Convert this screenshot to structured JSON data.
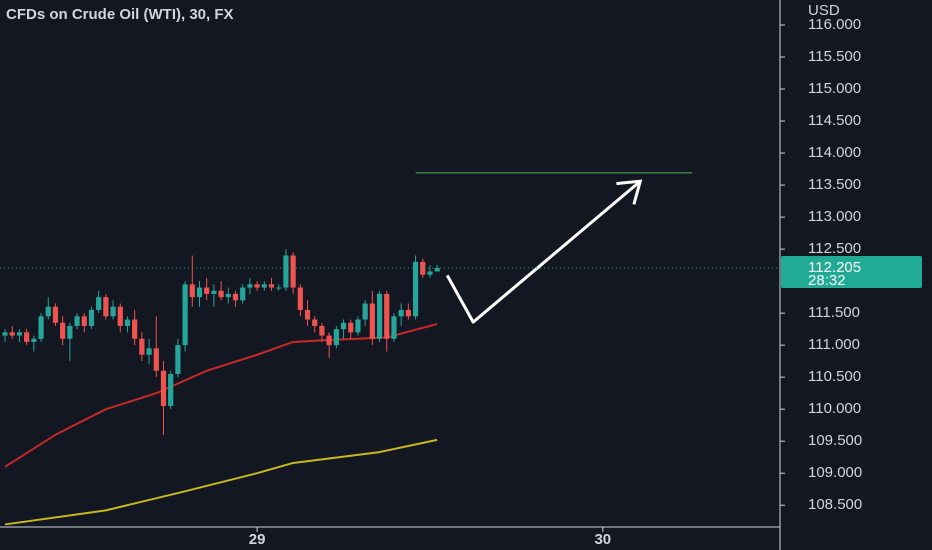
{
  "chart_data": {
    "type": "candlestick",
    "title": "CFDs on Crude Oil (WTI), 30, FX",
    "y_axis_label": "USD",
    "up_color": "#26a69a",
    "down_color": "#ef5350",
    "xlim": [
      -35.7,
      72.6
    ],
    "xticks": [
      {
        "value": 0,
        "label": "29"
      },
      {
        "value": 48,
        "label": "30"
      }
    ],
    "ylim": [
      108.16,
      116.39
    ],
    "yticks": [
      {
        "value": 116,
        "label": "116.000"
      },
      {
        "value": 115.5,
        "label": "115.500"
      },
      {
        "value": 115,
        "label": "115.000"
      },
      {
        "value": 114.5,
        "label": "114.500"
      },
      {
        "value": 114,
        "label": "114.000"
      },
      {
        "value": 113.5,
        "label": "113.500"
      },
      {
        "value": 113,
        "label": "113.000"
      },
      {
        "value": 112.5,
        "label": "112.500"
      },
      {
        "value": 111.5,
        "label": "111.500"
      },
      {
        "value": 111,
        "label": "111.000"
      },
      {
        "value": 110.5,
        "label": "110.500"
      },
      {
        "value": 110,
        "label": "110.000"
      },
      {
        "value": 109.5,
        "label": "109.500"
      },
      {
        "value": 109,
        "label": "109.000"
      },
      {
        "value": 108.5,
        "label": "108.500"
      }
    ],
    "x": [
      -35,
      -34,
      -33,
      -32,
      -31,
      -30,
      -29,
      -28,
      -27,
      -26,
      -25,
      -24,
      -23,
      -22,
      -21,
      -20,
      -19,
      -18,
      -17,
      -16,
      -15,
      -14,
      -13,
      -12,
      -11,
      -10,
      -9,
      -8,
      -7,
      -6,
      -5,
      -4,
      -3,
      -2,
      -1,
      0,
      1,
      2,
      3,
      4,
      5,
      6,
      7,
      8,
      9,
      10,
      11,
      12,
      13,
      14,
      15,
      16,
      17,
      18,
      19,
      20,
      21,
      22,
      23,
      24,
      25
    ],
    "open": [
      111.15,
      111.2,
      111.15,
      111.2,
      111.05,
      111.1,
      111.45,
      111.6,
      111.35,
      111.1,
      111.3,
      111.45,
      111.3,
      111.55,
      111.75,
      111.45,
      111.6,
      111.3,
      111.4,
      111.1,
      110.85,
      110.95,
      110.6,
      110.05,
      110.55,
      111.0,
      111.95,
      111.75,
      111.9,
      111.8,
      111.85,
      111.75,
      111.8,
      111.7,
      111.9,
      111.95,
      111.9,
      111.95,
      111.9,
      111.9,
      112.4,
      111.9,
      111.55,
      111.4,
      111.3,
      111.15,
      111.0,
      111.25,
      111.35,
      111.2,
      111.4,
      111.65,
      111.1,
      111.8,
      111.1,
      111.45,
      111.55,
      111.45,
      112.3,
      112.1,
      112.15
    ],
    "high": [
      111.25,
      111.3,
      111.25,
      111.25,
      111.15,
      111.5,
      111.75,
      111.65,
      111.45,
      111.35,
      111.5,
      111.5,
      111.6,
      111.85,
      111.8,
      111.7,
      111.65,
      111.45,
      111.55,
      111.2,
      111.1,
      111.45,
      110.75,
      110.6,
      111.1,
      112.0,
      112.4,
      112.0,
      112.05,
      111.95,
      112.0,
      111.9,
      111.85,
      111.95,
      112.05,
      112.0,
      112.0,
      112.05,
      111.95,
      112.5,
      112.45,
      111.95,
      111.7,
      111.45,
      111.35,
      111.2,
      111.3,
      111.4,
      111.4,
      111.45,
      111.7,
      111.85,
      111.85,
      111.85,
      111.5,
      111.65,
      111.65,
      112.4,
      112.35,
      112.25,
      112.25
    ],
    "low": [
      111.05,
      111.1,
      111.05,
      111.0,
      110.9,
      111.05,
      111.4,
      111.3,
      111.0,
      110.75,
      111.25,
      111.2,
      111.25,
      111.5,
      111.4,
      111.4,
      111.2,
      111.2,
      111.0,
      110.75,
      110.7,
      110.5,
      109.6,
      110.0,
      110.5,
      110.9,
      111.6,
      111.6,
      111.7,
      111.6,
      111.7,
      111.65,
      111.6,
      111.65,
      111.8,
      111.85,
      111.85,
      111.85,
      111.85,
      111.85,
      111.8,
      111.45,
      111.3,
      111.2,
      111.05,
      110.8,
      110.95,
      111.1,
      111.1,
      111.15,
      111.3,
      111.0,
      111.05,
      110.9,
      111.05,
      111.3,
      111.4,
      111.4,
      112.05,
      112.05,
      112.15
    ],
    "close": [
      111.2,
      111.15,
      111.2,
      111.05,
      111.1,
      111.45,
      111.6,
      111.35,
      111.1,
      111.3,
      111.45,
      111.3,
      111.55,
      111.75,
      111.45,
      111.6,
      111.3,
      111.4,
      111.1,
      110.85,
      110.95,
      110.6,
      110.05,
      110.55,
      111.0,
      111.95,
      111.75,
      111.9,
      111.8,
      111.85,
      111.75,
      111.8,
      111.7,
      111.9,
      111.95,
      111.9,
      111.95,
      111.9,
      111.9,
      112.4,
      111.9,
      111.55,
      111.4,
      111.3,
      111.15,
      111.0,
      111.25,
      111.35,
      111.2,
      111.4,
      111.65,
      111.1,
      111.8,
      111.1,
      111.45,
      111.55,
      111.45,
      112.3,
      112.1,
      112.15,
      112.205
    ],
    "moving_averages": [
      {
        "color": "#c62828",
        "x": [
          -35,
          -28,
          -21,
          -14,
          -7,
          0,
          5,
          10,
          18,
          25
        ],
        "values": [
          109.1,
          109.6,
          110.0,
          110.25,
          110.6,
          110.85,
          111.05,
          111.08,
          111.12,
          111.33
        ]
      },
      {
        "color": "#c8b820",
        "x": [
          -35,
          -21,
          -11,
          0,
          5,
          17,
          25
        ],
        "values": [
          108.2,
          108.42,
          108.69,
          109.0,
          109.16,
          109.33,
          109.52
        ]
      }
    ],
    "last_price": {
      "value": 112.205,
      "label": "112.205"
    },
    "countdown": "28:32",
    "price_color": "#22ab94",
    "target_line": {
      "color": "#4caf50",
      "value": 113.69,
      "x": [
        22,
        60.4
      ]
    },
    "arrow": {
      "color": "#ffffff",
      "x": [
        26.4,
        30.0,
        53.2
      ],
      "values": [
        112.09,
        111.36,
        113.56
      ]
    }
  }
}
